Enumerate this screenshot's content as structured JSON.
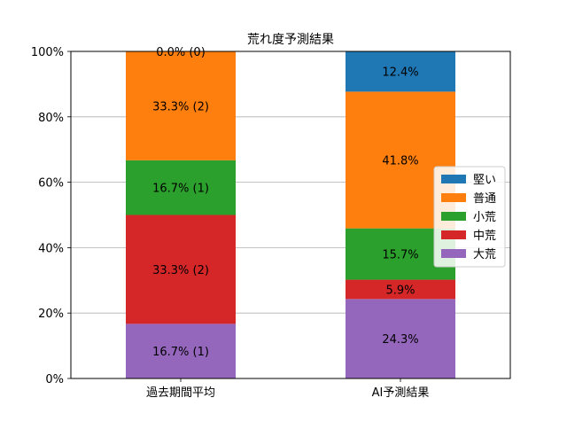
{
  "chart_data": {
    "type": "bar",
    "stacked": true,
    "title": "荒れ度予測結果",
    "xlabel": "",
    "ylabel": "",
    "ylim": [
      0,
      100
    ],
    "y_ticks": [
      "0%",
      "20%",
      "40%",
      "60%",
      "80%",
      "100%"
    ],
    "grid": "horizontal",
    "legend_position": "right",
    "categories": [
      "過去期間平均",
      "AI予測結果"
    ],
    "series": [
      {
        "name": "大荒",
        "color": "#9467bd",
        "values": [
          16.7,
          24.3
        ],
        "labels": [
          "16.7% (1)",
          "24.3%"
        ]
      },
      {
        "name": "中荒",
        "color": "#d62728",
        "values": [
          33.3,
          5.9
        ],
        "labels": [
          "33.3% (2)",
          "5.9%"
        ]
      },
      {
        "name": "小荒",
        "color": "#2ca02c",
        "values": [
          16.7,
          15.7
        ],
        "labels": [
          "16.7% (1)",
          "15.7%"
        ]
      },
      {
        "name": "普通",
        "color": "#ff7f0e",
        "values": [
          33.3,
          41.8
        ],
        "labels": [
          "33.3% (2)",
          "41.8%"
        ]
      },
      {
        "name": "堅い",
        "color": "#1f77b4",
        "values": [
          0.0,
          12.4
        ],
        "labels": [
          "0.0% (0)",
          "12.4%"
        ]
      }
    ],
    "legend_order": [
      "堅い",
      "普通",
      "小荒",
      "中荒",
      "大荒"
    ]
  }
}
